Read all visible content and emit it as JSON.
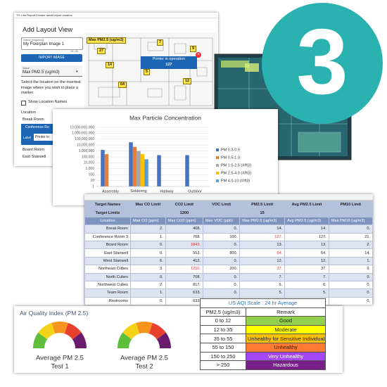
{
  "layout_panel": {
    "app_header": "TG Link Report Creator ascell report creation",
    "title": "Add Layout View",
    "name_label": "Name (required)",
    "name_value": "My Floorplan Image 1",
    "name_counter": "10 / 40",
    "import_button": "IMPORT IMAGE",
    "value_label": "Value",
    "value_selected": "Max PM2.5 (ug/m3)",
    "instructions": "Select the location on the inserted image where you wish to place a marker.",
    "show_names": "Show Location Names",
    "location_heading": "Location",
    "locations": [
      "Break Room",
      "Conference Ro",
      "Board Room",
      "East Stairwell"
    ],
    "label_field": "Label",
    "label_value": "Printer in",
    "map_title": "Max PM2.5 (ug/m3)",
    "map_markers": [
      "27",
      "7",
      "9",
      "14",
      "5",
      "8",
      "12",
      "64"
    ],
    "popup_title": "Printer in operation",
    "popup_value": "127"
  },
  "badge": "3",
  "chart_data": {
    "type": "bar",
    "title": "Max Particle Concentration",
    "log_scale": true,
    "categories": [
      "Assembly",
      "Soldering Station",
      "Hallway",
      "Outdoor"
    ],
    "series": [
      {
        "name": "PM 0.3-0.5",
        "color": "#4472c4",
        "values": [
          1500000,
          30000000,
          200000,
          200000
        ]
      },
      {
        "name": "PM 0.5-1.0",
        "color": "#ed7d31",
        "values": [
          300000,
          5000000,
          null,
          null
        ]
      },
      {
        "name": "PM 1.0-2.5 (#/ft3)",
        "color": "#a5a5a5",
        "values": [
          null,
          1000000,
          null,
          null
        ]
      },
      {
        "name": "PM 2.5-4.0 (#/ft3)",
        "color": "#ffc000",
        "values": [
          null,
          300000,
          null,
          null
        ]
      },
      {
        "name": "PM 4.0-10 (#/ft3)",
        "color": "#5b9bd5",
        "values": [
          null,
          40000,
          null,
          null
        ]
      }
    ],
    "ylim": [
      1,
      10000000000
    ],
    "yticks": [
      1,
      10,
      100,
      {
        "value": 1000,
        "label": "1,000"
      },
      {
        "value": 10000,
        "label": "10,000"
      },
      {
        "value": 100000,
        "label": "100,000"
      },
      {
        "value": 1000000,
        "label": "1,000,000"
      },
      {
        "value": 10000000,
        "label": "10,000,000"
      },
      {
        "value": 100000000,
        "label": "100,000,000"
      },
      {
        "value": 1000000000,
        "label": "1,000,000,000"
      },
      {
        "value": 10000000000,
        "label": "10,000,000,000"
      }
    ],
    "grid": true
  },
  "results_table": {
    "limit_headers": [
      "Target Names",
      "Max CO Limit",
      "CO2 Limit",
      "VOC Limit",
      "PM2.5 Limit",
      "Avg PM2.5 Limit",
      "PM10 Limit"
    ],
    "target_limits": {
      "label": "Target Limits",
      "co2": "1200",
      "pm25": "15"
    },
    "columns": [
      "Location",
      "Max CO (ppm)",
      "Max CO2 (ppm)",
      "Max VOC (ppb)",
      "Max PM2.5 (ug/m3)",
      "Avg PM2.5 (ug/m3)",
      "Max PM10 (ug/m3)"
    ],
    "rows": [
      [
        "Break Room",
        "2.",
        "408.",
        "0.",
        "14.",
        "14.",
        "0."
      ],
      [
        "Conference Room 3",
        "1.",
        "768.",
        "100.",
        "127.",
        "127.",
        "21."
      ],
      [
        "Board Room",
        "0.",
        "1843.",
        "0.",
        "13.",
        "13.",
        "2."
      ],
      [
        "East Stairwell",
        "0.",
        "553.",
        "800.",
        "64.",
        "64.",
        "14."
      ],
      [
        "West Stairwell",
        "6.",
        "412.",
        "0.",
        "12.",
        "12.",
        "1."
      ],
      [
        "Northeast Cubes",
        "3.",
        "1210.",
        "200.",
        "37.",
        "37.",
        "9."
      ],
      [
        "North Cubes",
        "0.",
        "708.",
        "0.",
        "7.",
        "7.",
        "0."
      ],
      [
        "Northwest Cubes",
        "2.",
        "817.",
        "0.",
        "6.",
        "6.",
        "0."
      ],
      [
        "Team Room",
        "1.",
        "633.",
        "0.",
        "5.",
        "5.",
        "0."
      ],
      [
        "Restrooms",
        "0.",
        "633.",
        "0.",
        "5.",
        "5.",
        "0."
      ]
    ]
  },
  "aqi_panel": {
    "title": "Air Quality Index (PM 2.5)",
    "gauge_colors": [
      "#5fbf3a",
      "#f5d21a",
      "#f7941d",
      "#e8412c",
      "#6a1b6e"
    ],
    "gauges": [
      {
        "label": "Average PM 2.5",
        "test": "Test 1"
      },
      {
        "label": "Average PM 2.5",
        "test": "Test 2"
      }
    ],
    "scale_title": "US AQI Scale : 24 hr Average",
    "headers": [
      "PM2.5 (ug/m3)",
      "Remark"
    ],
    "rows": [
      {
        "range": "0 to 12",
        "remark": "Good",
        "color": "#92d050"
      },
      {
        "range": "12 to 35",
        "remark": "Moderate",
        "color": "#ffff00"
      },
      {
        "range": "35 to 55",
        "remark": "Unhealthy for Sensitive Individuals",
        "color": "#ffc000"
      },
      {
        "range": "55 to 150",
        "remark": "Unhealthy",
        "color": "#ff7a33"
      },
      {
        "range": "150 to 250",
        "remark": "Very Unhealthy",
        "color": "#a347f5"
      },
      {
        "range": "> 250",
        "remark": "Hazardous",
        "color": "#7a1f8a"
      }
    ]
  }
}
